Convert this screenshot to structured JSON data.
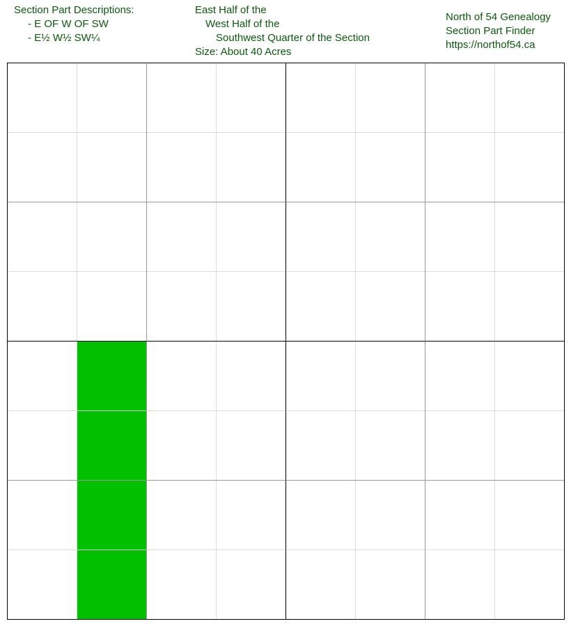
{
  "descriptions": {
    "heading": "Section Part Descriptions:",
    "items": [
      "- E OF W OF SW",
      "- E½ W½ SW¼"
    ]
  },
  "name": {
    "line1": "East Half of the",
    "line2": "West Half of the",
    "line3": "Southwest Quarter of the Section",
    "size": "Size: About 40 Acres"
  },
  "branding": {
    "title": "North of 54 Genealogy",
    "subtitle": "Section Part Finder",
    "url": "https://northof54.ca"
  },
  "grid": {
    "rows": 8,
    "cols": 8,
    "highlighted_cells": [
      [
        4,
        1
      ],
      [
        5,
        1
      ],
      [
        6,
        1
      ],
      [
        7,
        1
      ]
    ],
    "colors": {
      "highlight": "#00c000",
      "fine_line": "#dddddd",
      "half_line": "#999999",
      "quarter_line": "#000000",
      "text": "#0a5a0a"
    }
  }
}
